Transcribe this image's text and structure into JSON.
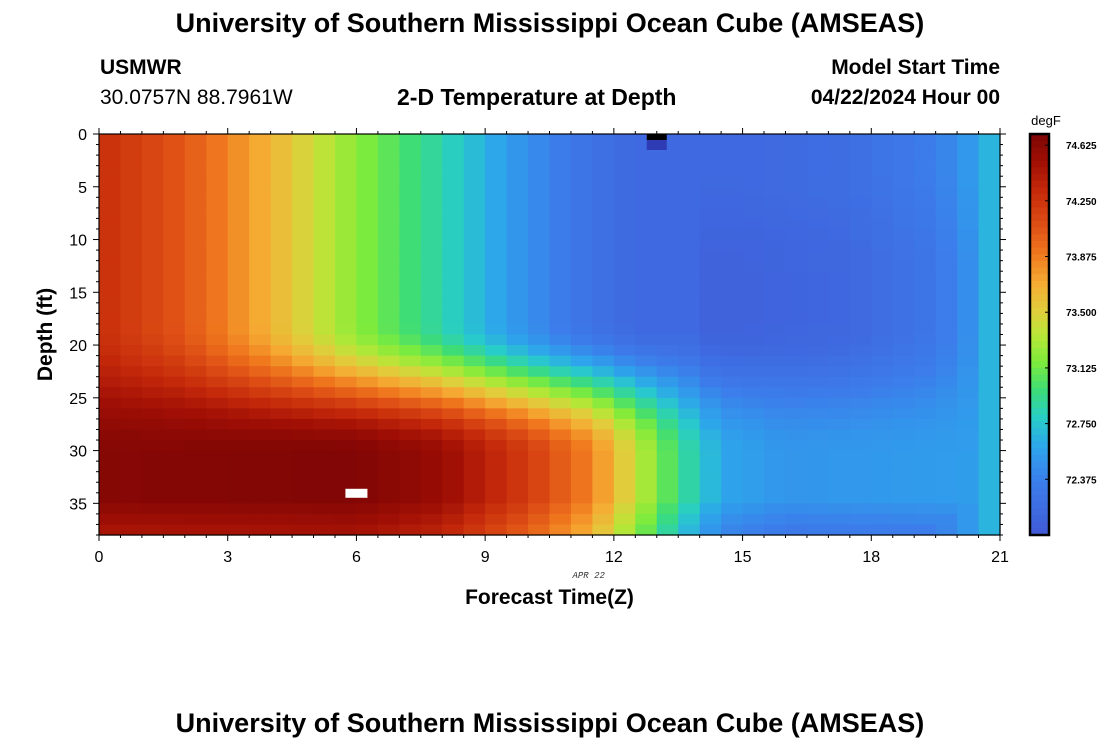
{
  "header": {
    "title": "University of Southern Mississippi Ocean Cube (AMSEAS)",
    "station": "USMWR",
    "location": "30.0757N  88.7961W",
    "subtitle": "2-D Temperature at Depth",
    "model_start_label": "Model Start Time",
    "model_start_value": "04/22/2024 Hour 00"
  },
  "footer": {
    "title": "University of Southern Mississippi Ocean Cube (AMSEAS)"
  },
  "chart_data": {
    "type": "heatmap",
    "title": "2-D Temperature at Depth",
    "xlabel": "Forecast Time(Z)",
    "ylabel": "Depth (ft)",
    "date_label": "APR 22",
    "x_ticks": [
      0,
      3,
      6,
      9,
      12,
      15,
      18,
      21
    ],
    "y_ticks": [
      0,
      5,
      10,
      15,
      20,
      25,
      30,
      35
    ],
    "xlim": [
      0,
      21
    ],
    "ylim": [
      0,
      38
    ],
    "colorbar": {
      "unit": "degF",
      "tick_labels": [
        "74.625",
        "74.250",
        "73.875",
        "73.500",
        "73.125",
        "72.750",
        "72.375"
      ],
      "tick_values": [
        74.625,
        74.25,
        73.875,
        73.5,
        73.125,
        72.75,
        72.375
      ],
      "vmin": 72.0,
      "vmax": 74.7
    },
    "n_cols": 42,
    "n_rows": 38,
    "surface_profile": [
      {
        "t": 0,
        "v": 74.28
      },
      {
        "t": 2,
        "v": 74.05
      },
      {
        "t": 4,
        "v": 73.65
      },
      {
        "t": 6,
        "v": 73.2
      },
      {
        "t": 8,
        "v": 72.85
      },
      {
        "t": 9.5,
        "v": 72.55
      },
      {
        "t": 11,
        "v": 72.3
      },
      {
        "t": 12.5,
        "v": 72.15
      },
      {
        "t": 15,
        "v": 72.15
      },
      {
        "t": 17.5,
        "v": 72.2
      },
      {
        "t": 19.5,
        "v": 72.35
      },
      {
        "t": 20.4,
        "v": 72.55
      },
      {
        "t": 21,
        "v": 72.75
      }
    ],
    "deep_layer": {
      "top_depth": 30.5,
      "core_depth": 34.5,
      "core_value": 74.68,
      "profile": [
        {
          "t": 0,
          "v": 74.65
        },
        {
          "t": 6,
          "v": 74.68
        },
        {
          "t": 8,
          "v": 74.55
        },
        {
          "t": 10,
          "v": 74.2
        },
        {
          "t": 11.5,
          "v": 73.85
        },
        {
          "t": 12.5,
          "v": 73.4
        },
        {
          "t": 13.5,
          "v": 72.95
        },
        {
          "t": 14.5,
          "v": 72.6
        },
        {
          "t": 16,
          "v": 72.5
        },
        {
          "t": 21,
          "v": 72.55
        }
      ]
    },
    "markers": [
      {
        "type": "missing",
        "t": 6,
        "depth": 34
      },
      {
        "type": "land",
        "t": 13,
        "depth": 0
      }
    ]
  }
}
